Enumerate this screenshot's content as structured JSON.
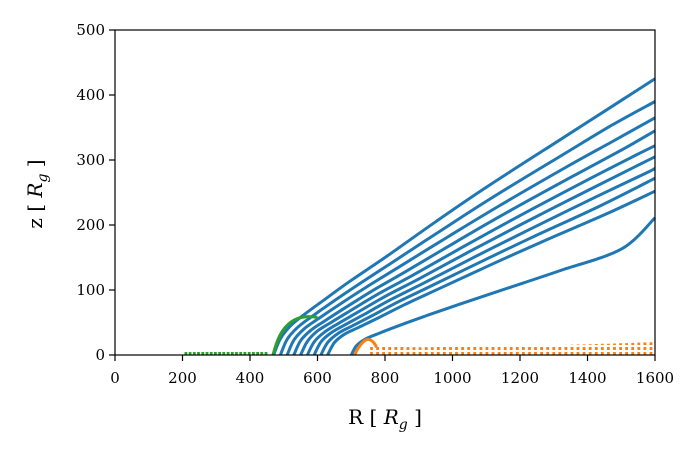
{
  "chart_data": {
    "type": "line",
    "xlabel": "R [ R_g ]",
    "xlabel_parts": {
      "main": "R [ ",
      "var": "R",
      "sub": "g",
      "close": " ]"
    },
    "ylabel_parts": {
      "main": "z [ ",
      "var": "R",
      "sub": "g",
      "close": " ]"
    },
    "xlim": [
      0,
      1600
    ],
    "ylim": [
      0,
      500
    ],
    "xticks": [
      "0",
      "200",
      "400",
      "600",
      "800",
      "1000",
      "1200",
      "1400",
      "1600"
    ],
    "yticks": [
      "0",
      "100",
      "200",
      "300",
      "400",
      "500"
    ],
    "grid": false,
    "colors": {
      "blue": "#1f77b4",
      "orange": "#ff7f0e",
      "green": "#2ca02c"
    },
    "series": [
      {
        "color": "blue",
        "style": "solid",
        "x": [
          470,
          490,
          520,
          560,
          620,
          700,
          800,
          950,
          1100,
          1300,
          1450,
          1600
        ],
        "y": [
          0,
          25,
          45,
          62,
          85,
          115,
          150,
          205,
          258,
          325,
          375,
          425
        ]
      },
      {
        "color": "blue",
        "style": "solid",
        "x": [
          490,
          510,
          540,
          580,
          640,
          720,
          820,
          970,
          1120,
          1320,
          1470,
          1600
        ],
        "y": [
          0,
          24,
          42,
          58,
          80,
          108,
          142,
          193,
          243,
          306,
          353,
          390
        ]
      },
      {
        "color": "blue",
        "style": "solid",
        "x": [
          510,
          530,
          560,
          600,
          660,
          740,
          840,
          990,
          1140,
          1340,
          1490,
          1600
        ],
        "y": [
          0,
          23,
          40,
          55,
          76,
          103,
          135,
          183,
          230,
          290,
          333,
          365
        ]
      },
      {
        "color": "blue",
        "style": "solid",
        "x": [
          530,
          550,
          580,
          620,
          680,
          760,
          860,
          1010,
          1160,
          1360,
          1510,
          1600
        ],
        "y": [
          0,
          22,
          38,
          52,
          72,
          98,
          128,
          174,
          219,
          276,
          318,
          345
        ]
      },
      {
        "color": "blue",
        "style": "solid",
        "x": [
          550,
          570,
          600,
          640,
          700,
          780,
          880,
          1030,
          1180,
          1380,
          1530,
          1600
        ],
        "y": [
          0,
          21,
          37,
          50,
          69,
          94,
          122,
          166,
          209,
          264,
          304,
          322
        ]
      },
      {
        "color": "blue",
        "style": "solid",
        "x": [
          570,
          590,
          620,
          660,
          720,
          800,
          900,
          1050,
          1200,
          1400,
          1550,
          1600
        ],
        "y": [
          0,
          20,
          35,
          48,
          66,
          90,
          117,
          159,
          200,
          253,
          292,
          305
        ]
      },
      {
        "color": "blue",
        "style": "solid",
        "x": [
          590,
          610,
          640,
          680,
          740,
          820,
          920,
          1070,
          1220,
          1420,
          1570,
          1600
        ],
        "y": [
          0,
          20,
          34,
          46,
          63,
          86,
          112,
          152,
          191,
          242,
          279,
          287
        ]
      },
      {
        "color": "blue",
        "style": "solid",
        "x": [
          610,
          630,
          660,
          700,
          760,
          840,
          940,
          1090,
          1240,
          1440,
          1600
        ],
        "y": [
          0,
          19,
          33,
          44,
          60,
          82,
          107,
          145,
          182,
          230,
          272
        ]
      },
      {
        "color": "blue",
        "style": "solid",
        "x": [
          630,
          650,
          680,
          720,
          780,
          860,
          960,
          1110,
          1260,
          1460,
          1600
        ],
        "y": [
          0,
          19,
          32,
          42,
          57,
          78,
          102,
          138,
          173,
          218,
          252
        ]
      },
      {
        "color": "blue",
        "style": "solid",
        "x": [
          700,
          715,
          740,
          780,
          840,
          920,
          1020,
          1170,
          1320,
          1500,
          1600
        ],
        "y": [
          0,
          14,
          24,
          33,
          45,
          60,
          78,
          104,
          130,
          163,
          211
        ]
      },
      {
        "color": "green",
        "style": "solid",
        "x": [
          468,
          480,
          495,
          515,
          540,
          570,
          600
        ],
        "y": [
          0,
          20,
          36,
          48,
          56,
          59,
          58
        ]
      },
      {
        "color": "orange",
        "style": "solid",
        "x": [
          710,
          720,
          735,
          750,
          765,
          775
        ],
        "y": [
          0,
          10,
          20,
          24,
          20,
          12
        ]
      },
      {
        "color": "green",
        "style": "dotted",
        "x": [
          210,
          250,
          300,
          350,
          400,
          450
        ],
        "y": [
          5,
          5,
          5,
          5,
          6,
          7
        ]
      },
      {
        "color": "orange",
        "style": "dotted",
        "x": [
          760,
          900,
          1100,
          1300,
          1500,
          1600
        ],
        "y": [
          13,
          12,
          13,
          15,
          18,
          20
        ]
      }
    ]
  }
}
